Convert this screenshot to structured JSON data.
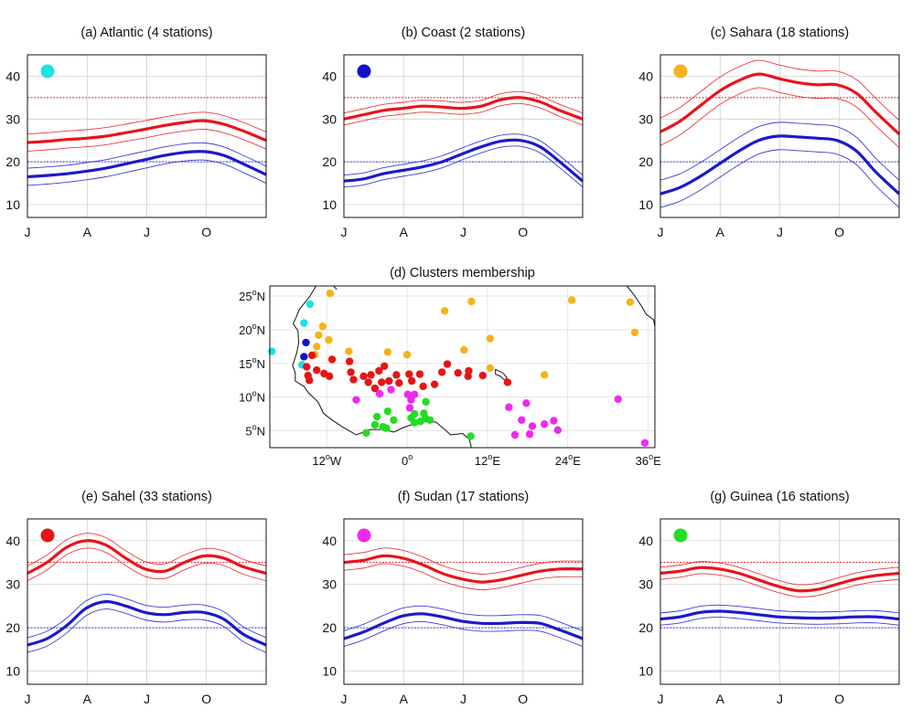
{
  "figure": {
    "colors": {
      "tmax": "#e8141c",
      "tmin": "#1a1acc",
      "threshold_tmax": "#e8141c",
      "threshold_tmin": "#3a3ad8",
      "grid": "#c8c8c8",
      "Atlantic": "#19e3e3",
      "Coast": "#1212c8",
      "Sahara": "#f5b31b",
      "Sahel": "#e51515",
      "Sudan": "#ee2aee",
      "Guinea": "#22dd22"
    }
  },
  "chart_data": [
    {
      "type": "line",
      "panel": "a",
      "title": "(a) Atlantic (4 stations)",
      "cluster": "Atlantic",
      "xticks": [
        "J",
        "A",
        "J",
        "O"
      ],
      "yticks": [
        10,
        20,
        30,
        40
      ],
      "ylim": [
        7,
        45
      ],
      "thresholds": [
        35,
        20
      ],
      "grid": true,
      "x": [
        0,
        30,
        60,
        90,
        120,
        150,
        180,
        210,
        240,
        270,
        300,
        330,
        365
      ],
      "series": [
        {
          "key": "tmax",
          "values": [
            24.5,
            24.8,
            25.2,
            25.5,
            26,
            26.8,
            27.6,
            28.5,
            29.2,
            29.6,
            28.8,
            27.2,
            25
          ]
        },
        {
          "key": "tmin",
          "values": [
            16.5,
            16.8,
            17.2,
            17.8,
            18.5,
            19.5,
            20.5,
            21.5,
            22.2,
            22.4,
            21.5,
            19.5,
            17
          ]
        }
      ],
      "spread": 2
    },
    {
      "type": "line",
      "panel": "b",
      "title": "(b) Coast (2 stations)",
      "cluster": "Coast",
      "xticks": [
        "J",
        "A",
        "J",
        "O"
      ],
      "yticks": [
        10,
        20,
        30,
        40
      ],
      "ylim": [
        7,
        45
      ],
      "thresholds": [
        35,
        20
      ],
      "grid": true,
      "x": [
        0,
        30,
        60,
        90,
        120,
        150,
        180,
        210,
        240,
        270,
        300,
        330,
        365
      ],
      "series": [
        {
          "key": "tmax",
          "values": [
            30,
            31,
            32,
            32.5,
            33,
            32.8,
            32.5,
            33,
            34.5,
            35,
            34,
            32,
            30
          ]
        },
        {
          "key": "tmin",
          "values": [
            15.5,
            16,
            17.2,
            18,
            18.8,
            20,
            21.8,
            23.5,
            24.8,
            25,
            23.5,
            20,
            15.5
          ]
        }
      ],
      "spread": 1.4
    },
    {
      "type": "line",
      "panel": "c",
      "title": "(c) Sahara (18 stations)",
      "cluster": "Sahara",
      "xticks": [
        "J",
        "A",
        "J",
        "O"
      ],
      "yticks": [
        10,
        20,
        30,
        40
      ],
      "ylim": [
        7,
        45
      ],
      "thresholds": [
        35,
        20
      ],
      "grid": true,
      "x": [
        0,
        30,
        60,
        90,
        120,
        150,
        180,
        210,
        240,
        270,
        300,
        330,
        365
      ],
      "series": [
        {
          "key": "tmax",
          "values": [
            27,
            29.5,
            33,
            36.5,
            39,
            40.5,
            39.5,
            38.5,
            38,
            38,
            36,
            31.5,
            26.5
          ]
        },
        {
          "key": "tmin",
          "values": [
            12.5,
            14,
            16.5,
            19.5,
            22.5,
            25,
            26,
            25.8,
            25.5,
            25,
            22.5,
            17.5,
            12.5
          ]
        }
      ],
      "spread": 3.2
    },
    {
      "type": "scatter",
      "panel": "d",
      "title": "(d) Clusters membership",
      "xticks": [
        {
          "deg": -12,
          "text": "12",
          "hemi": "W"
        },
        {
          "deg": 0,
          "text": "0",
          "hemi": ""
        },
        {
          "deg": 12,
          "text": "12",
          "hemi": "E"
        },
        {
          "deg": 24,
          "text": "24",
          "hemi": "E"
        },
        {
          "deg": 36,
          "text": "36",
          "hemi": "E"
        }
      ],
      "yticks": [
        {
          "deg": 5,
          "text": "5",
          "hemi": "N"
        },
        {
          "deg": 10,
          "text": "10",
          "hemi": "N"
        },
        {
          "deg": 15,
          "text": "15",
          "hemi": "N"
        },
        {
          "deg": 20,
          "text": "20",
          "hemi": "N"
        },
        {
          "deg": 25,
          "text": "25",
          "hemi": "N"
        }
      ],
      "degree_symbol": "o",
      "xlim": [
        -20.5,
        37
      ],
      "ylim": [
        2.5,
        26.5
      ],
      "stations": {
        "Atlantic": [
          [
            -20.2,
            16.8
          ],
          [
            -14.5,
            23.8
          ],
          [
            -15.4,
            21
          ],
          [
            -15.7,
            14.8
          ]
        ],
        "Coast": [
          [
            -15.1,
            18.1
          ],
          [
            -15.4,
            16
          ]
        ],
        "Sahara": [
          [
            -11.5,
            25.4
          ],
          [
            -12.6,
            20.5
          ],
          [
            -13.2,
            19.2
          ],
          [
            -13.5,
            17.5
          ],
          [
            -13.8,
            16.3
          ],
          [
            -11.7,
            18.5
          ],
          [
            -8.7,
            16.8
          ],
          [
            -2.9,
            16.7
          ],
          [
            0,
            16.3
          ],
          [
            5.6,
            22.8
          ],
          [
            8.5,
            17
          ],
          [
            9.6,
            24.2
          ],
          [
            12.4,
            18.7
          ],
          [
            12.4,
            14.3
          ],
          [
            20.5,
            13.3
          ],
          [
            24.6,
            24.4
          ],
          [
            33.3,
            24.1
          ],
          [
            34,
            19.6
          ]
        ],
        "Sahel": [
          [
            -14.2,
            16.2
          ],
          [
            -15,
            14.5
          ],
          [
            -14.8,
            13.2
          ],
          [
            -14.6,
            12.5
          ],
          [
            -13.5,
            14
          ],
          [
            -12.4,
            13.5
          ],
          [
            -11.2,
            15.6
          ],
          [
            -11.6,
            13.1
          ],
          [
            -8.6,
            15.3
          ],
          [
            -8.4,
            13.7
          ],
          [
            -8,
            12.6
          ],
          [
            -6.5,
            13.1
          ],
          [
            -5.8,
            12.2
          ],
          [
            -5.4,
            13.3
          ],
          [
            -4.8,
            11.3
          ],
          [
            -4.2,
            13.9
          ],
          [
            -3.8,
            12.2
          ],
          [
            -3.4,
            14.6
          ],
          [
            -2.7,
            12.4
          ],
          [
            -1.6,
            13.3
          ],
          [
            -1.2,
            12.1
          ],
          [
            0.3,
            13.4
          ],
          [
            0.7,
            12.4
          ],
          [
            1.9,
            13.4
          ],
          [
            2.4,
            11.6
          ],
          [
            4.1,
            11.9
          ],
          [
            5.2,
            13.7
          ],
          [
            6,
            14.9
          ],
          [
            7.6,
            13.6
          ],
          [
            9.1,
            13.1
          ],
          [
            9.2,
            13.9
          ],
          [
            11.3,
            13.2
          ],
          [
            15,
            12.2
          ]
        ],
        "Sudan": [
          [
            -7.6,
            9.6
          ],
          [
            -4.1,
            10.5
          ],
          [
            -2.4,
            11.1
          ],
          [
            0.1,
            10.4
          ],
          [
            0.6,
            9.6
          ],
          [
            1.1,
            10.4
          ],
          [
            0.4,
            8.4
          ],
          [
            15.2,
            8.5
          ],
          [
            17.8,
            9.1
          ],
          [
            17.1,
            6.6
          ],
          [
            18.7,
            5.7
          ],
          [
            16.1,
            4.4
          ],
          [
            18.3,
            4.5
          ],
          [
            20.5,
            6
          ],
          [
            21.9,
            6.5
          ],
          [
            22.5,
            5.1
          ],
          [
            31.5,
            9.7
          ]
        ],
        "Guinea": [
          [
            -4.8,
            5.9
          ],
          [
            -4.5,
            7.1
          ],
          [
            -3.6,
            5.6
          ],
          [
            -3.1,
            5.4
          ],
          [
            -2.9,
            7.9
          ],
          [
            -2,
            6.6
          ],
          [
            -6.1,
            4.7
          ],
          [
            0.6,
            6.9
          ],
          [
            1.1,
            6.2
          ],
          [
            1.1,
            7.5
          ],
          [
            2,
            6.4
          ],
          [
            2.5,
            7.6
          ],
          [
            2.8,
            9.3
          ],
          [
            3.4,
            6.6
          ],
          [
            2.7,
            6.9
          ],
          [
            9.5,
            4.2
          ]
        ]
      },
      "extra_points": [
        {
          "cluster": "Sudan",
          "lon": 35.5,
          "lat": 3.2
        }
      ]
    },
    {
      "type": "line",
      "panel": "e",
      "title": "(e) Sahel (33 stations)",
      "cluster": "Sahel",
      "xticks": [
        "J",
        "A",
        "J",
        "O"
      ],
      "yticks": [
        10,
        20,
        30,
        40
      ],
      "ylim": [
        7,
        45
      ],
      "thresholds": [
        35,
        20
      ],
      "grid": true,
      "x": [
        0,
        30,
        60,
        90,
        120,
        150,
        180,
        210,
        240,
        270,
        300,
        330,
        365
      ],
      "series": [
        {
          "key": "tmax",
          "values": [
            32.5,
            35,
            38.5,
            40,
            39,
            36,
            33.5,
            33,
            35,
            36.5,
            36,
            34,
            32.5
          ]
        },
        {
          "key": "tmin",
          "values": [
            16,
            17.5,
            20.5,
            24.5,
            26,
            25,
            23.5,
            23,
            23.5,
            23.5,
            22,
            18.5,
            16
          ]
        }
      ],
      "spread": 1.7
    },
    {
      "type": "line",
      "panel": "f",
      "title": "(f) Sudan (17 stations)",
      "cluster": "Sudan",
      "xticks": [
        "J",
        "A",
        "J",
        "O"
      ],
      "yticks": [
        10,
        20,
        30,
        40
      ],
      "ylim": [
        7,
        45
      ],
      "thresholds": [
        35,
        20
      ],
      "grid": true,
      "x": [
        0,
        30,
        60,
        90,
        120,
        150,
        180,
        210,
        240,
        270,
        300,
        330,
        365
      ],
      "series": [
        {
          "key": "tmax",
          "values": [
            35,
            35.5,
            36.5,
            36,
            34.5,
            32.5,
            31.2,
            30.5,
            31,
            32,
            33,
            33.5,
            33.5
          ]
        },
        {
          "key": "tmin",
          "values": [
            17.5,
            19,
            21,
            22.7,
            23.2,
            22.5,
            21.5,
            21,
            21,
            21.2,
            21,
            19.5,
            17.5
          ]
        }
      ],
      "spread": 1.8
    },
    {
      "type": "line",
      "panel": "g",
      "title": "(g) Guinea (16 stations)",
      "cluster": "Guinea",
      "xticks": [
        "J",
        "A",
        "J",
        "O"
      ],
      "yticks": [
        10,
        20,
        30,
        40
      ],
      "ylim": [
        7,
        45
      ],
      "thresholds": [
        35,
        20
      ],
      "grid": true,
      "x": [
        0,
        30,
        60,
        90,
        120,
        150,
        180,
        210,
        240,
        270,
        300,
        330,
        365
      ],
      "series": [
        {
          "key": "tmax",
          "values": [
            32.5,
            33,
            33.8,
            33.5,
            32.5,
            31,
            29.5,
            28.5,
            28.8,
            30,
            31.2,
            32,
            32.5
          ]
        },
        {
          "key": "tmin",
          "values": [
            22,
            22.5,
            23.5,
            23.8,
            23.5,
            23,
            22.5,
            22.3,
            22.2,
            22.3,
            22.5,
            22.5,
            22
          ]
        }
      ],
      "spread": 1.4
    }
  ]
}
